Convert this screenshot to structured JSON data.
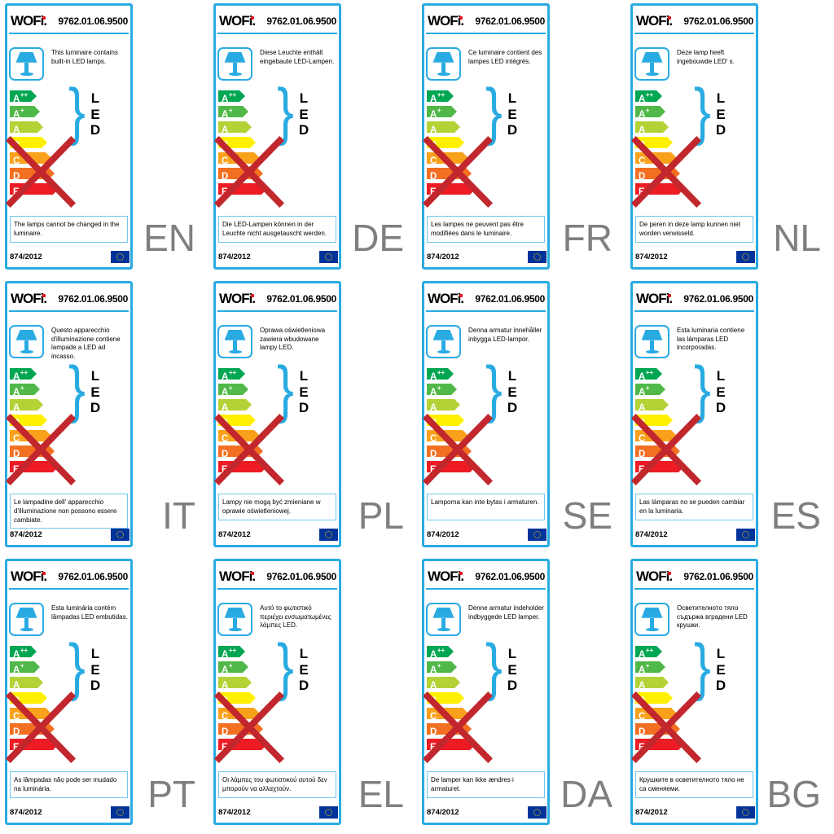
{
  "label_template": {
    "brand": "WOFi.",
    "model": "9762.01.06.9500",
    "regulation": "874/2012",
    "led_letters": [
      "L",
      "E",
      "D"
    ],
    "energy_arrows": [
      {
        "name": "A++",
        "label": "A",
        "sup": "++",
        "color": "#00a651"
      },
      {
        "name": "A+",
        "label": "A",
        "sup": "+",
        "color": "#50b848"
      },
      {
        "name": "A",
        "label": "A",
        "sup": "",
        "color": "#b3d235"
      },
      {
        "name": "B",
        "label": "B",
        "sup": "",
        "color": "#fff000"
      },
      {
        "name": "C",
        "label": "C",
        "sup": "",
        "color": "#f9a11b"
      },
      {
        "name": "D",
        "label": "D",
        "sup": "",
        "color": "#f36f21"
      },
      {
        "name": "E",
        "label": "E",
        "sup": "",
        "color": "#ed1c24"
      }
    ],
    "colors": {
      "label_border": "#29abe2",
      "lamp_icon": "#29abe2",
      "brace": "#29abe2",
      "notice_border": "#6fc7ec",
      "cross": "#c1272d",
      "flag_bg": "#003399",
      "flag_stars": "#ffcc00",
      "language_code": "#7f7f7f",
      "logo_dot": "#e8131d"
    }
  },
  "labels": [
    {
      "code": "EN",
      "description": "This luminaire contains built-in LED lamps.",
      "notice": "The lamps cannot be changed in the luminaire."
    },
    {
      "code": "DE",
      "description": "Diese Leuchte enthält eingebaute LED-Lampen.",
      "notice": "Die LED-Lampen können in der Leuchte nicht ausgetauscht werden."
    },
    {
      "code": "FR",
      "description": "Ce luminaire contient des lampes LED intégrés.",
      "notice": "Les lampes ne peuvent pas être modifiées dans le luminaire."
    },
    {
      "code": "NL",
      "description": "Deze lamp heeft ingebouwde LED' s.",
      "notice": "De peren in deze lamp kunnen niet worden verwisseld."
    },
    {
      "code": "IT",
      "description": "Questo apparecchio d'illuminazione contiene lampade a LED ad incasso.",
      "notice": "Le lampadine dell' apparecchio d'illuminazione non possono essere cambiate."
    },
    {
      "code": "PL",
      "description": "Oprawa oświetleniowa zawiera wbudowane lampy LED.",
      "notice": "Lampy nie mogą być zmieniane w oprawie oświetleniowej."
    },
    {
      "code": "SE",
      "description": "Denna armatur innehåller inbygga LED-lampor.",
      "notice": "Lamporna kan inte bytas i armaturen."
    },
    {
      "code": "ES",
      "description": "Esta luminaria contiene las lámparas LED incorporadas.",
      "notice": "Las lámparas no se pueden cambiar en la luminaria."
    },
    {
      "code": "PT",
      "description": "Esta luminária contém lâmpadas LED embutidas.",
      "notice": "As lâmpadas não pode ser mudado na luminária."
    },
    {
      "code": "EL",
      "description": "Αυτό το φωτιστικό περιέχει ενσωματωμένες λάμπες LED.",
      "notice": "Οι λάμπες του φωτιστικού αυτού δεν μπορούν να αλλαχτούν."
    },
    {
      "code": "DA",
      "description": "Denne armatur indeholder indbyggede LED lamper.",
      "notice": "De lamper kan ikke ændres i armaturet."
    },
    {
      "code": "BG",
      "description": "Осветителното тяло съдържа вградени LED крушки.",
      "notice": "Крушките в осветителното тяло не са сменяеми."
    }
  ]
}
